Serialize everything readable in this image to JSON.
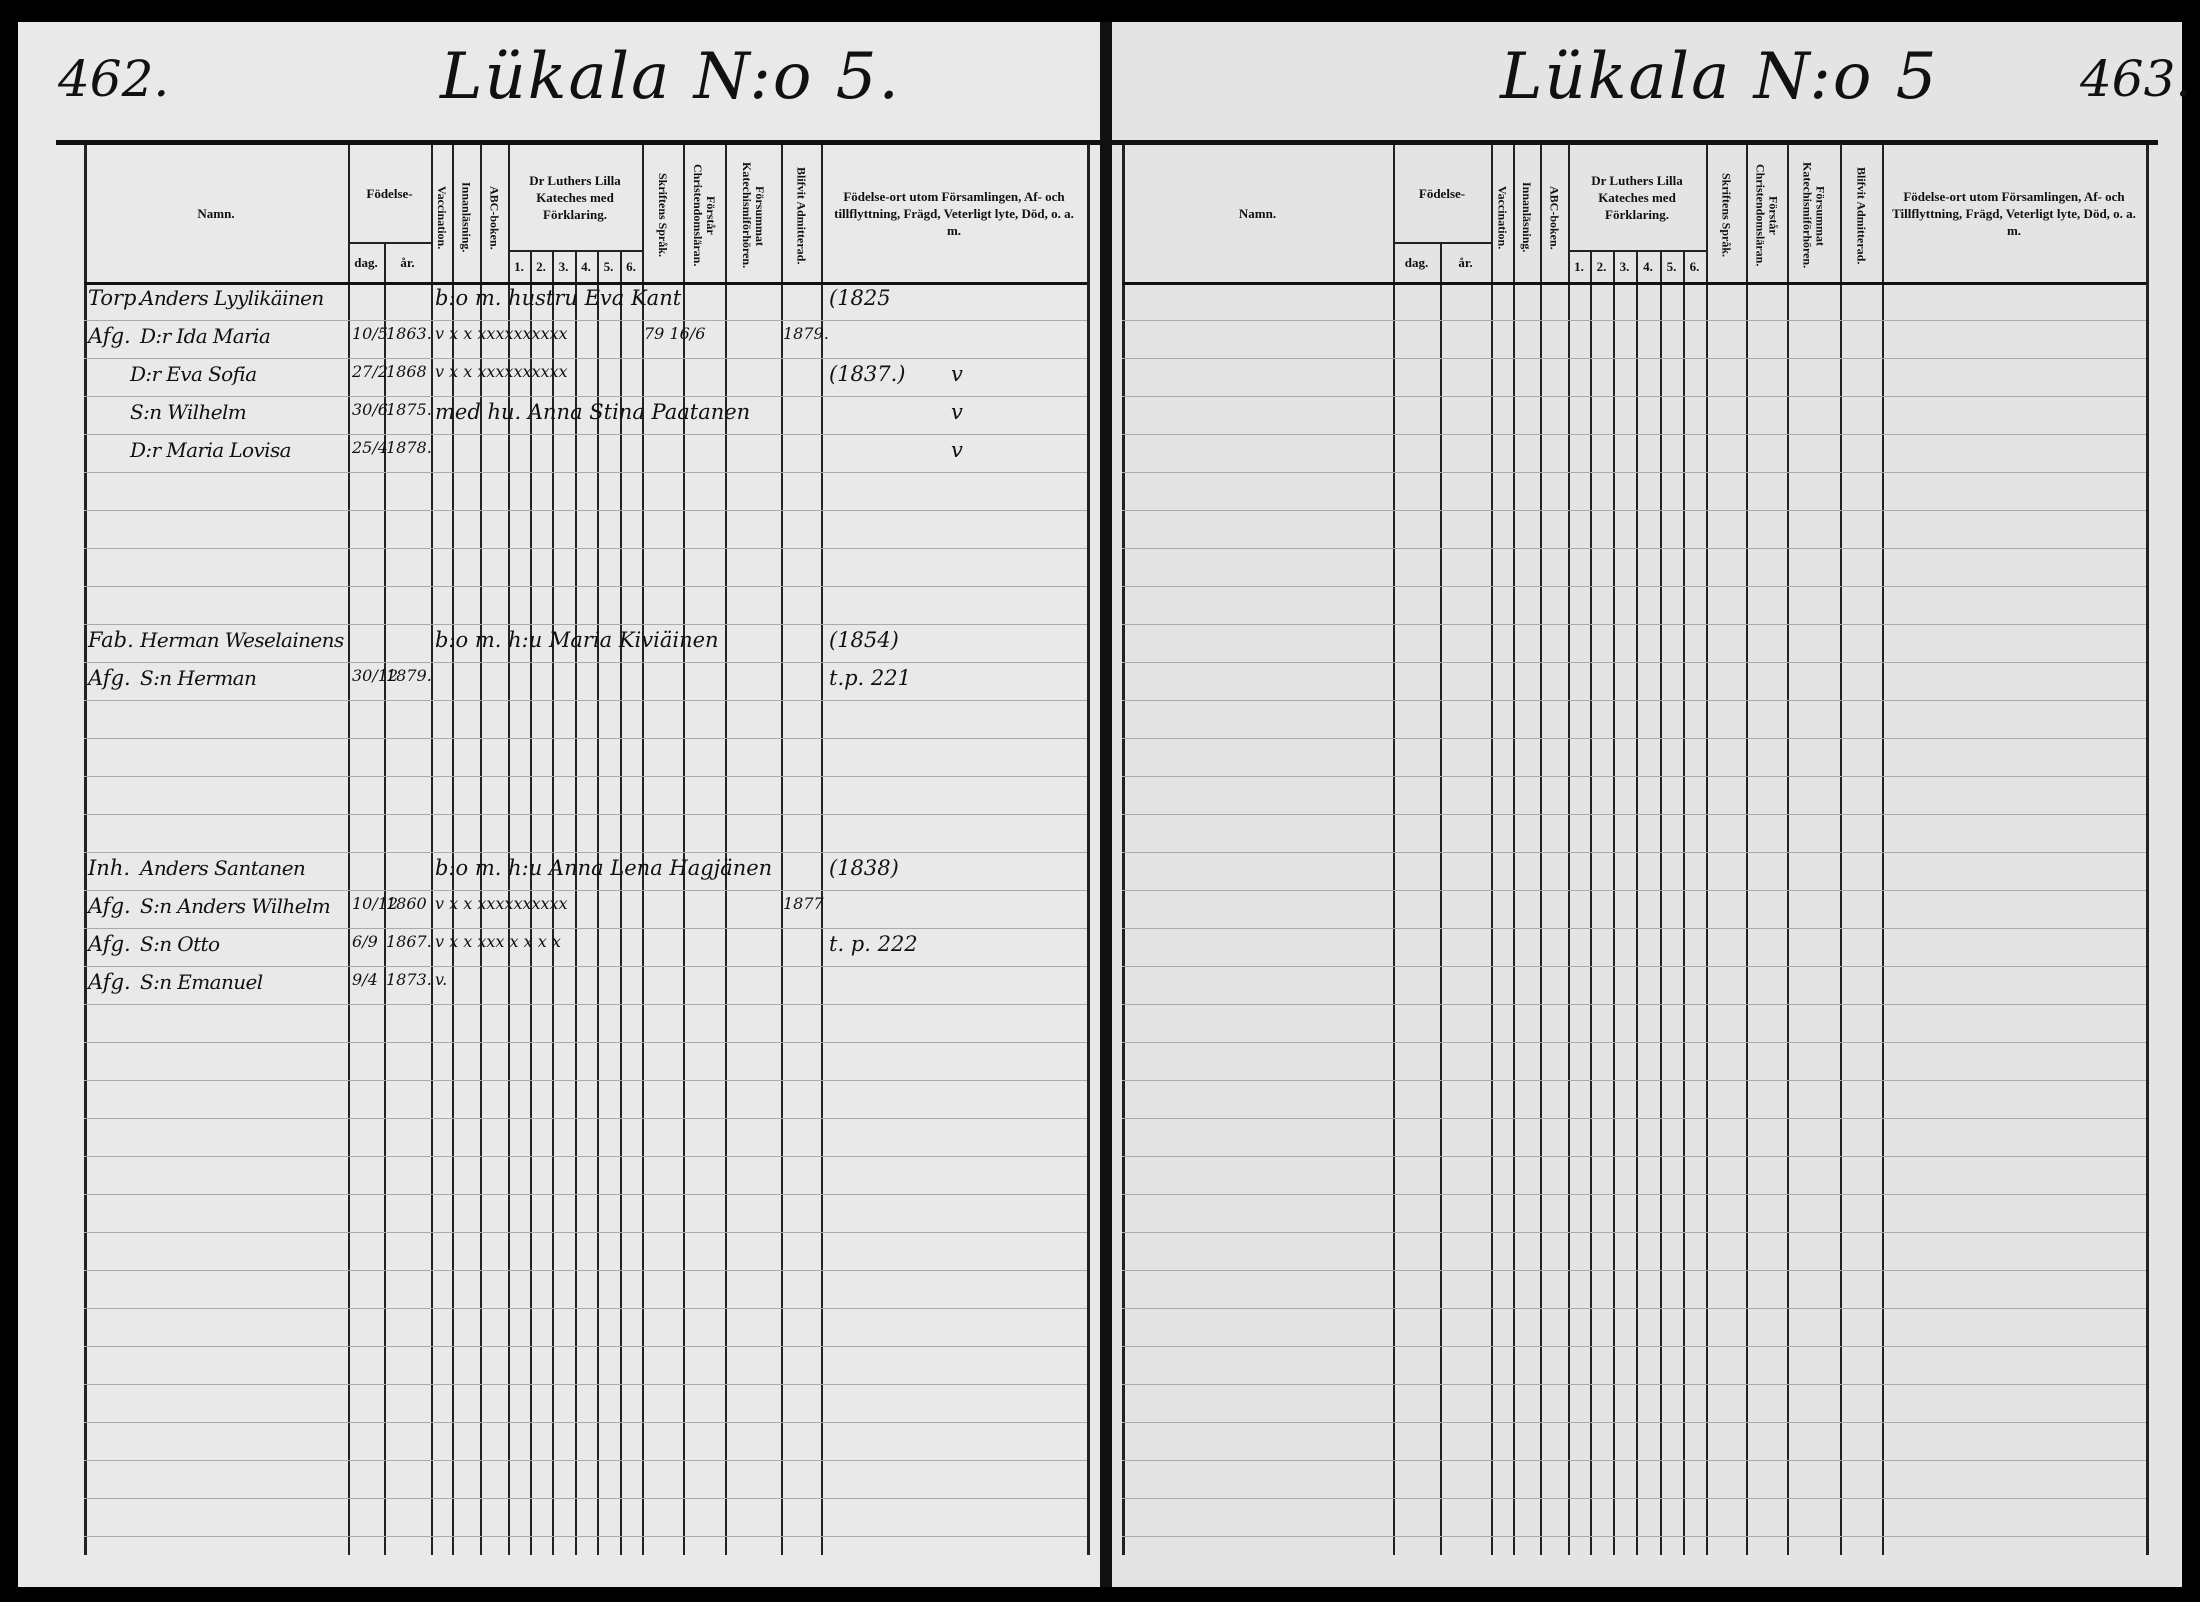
{
  "left_page": {
    "page_number": "462.",
    "heading": "Lükala N:o 5.",
    "rows": [
      {
        "title": "Torp.",
        "name": "Anders Lyylikäinen",
        "extra": "b:o m. hustru Eva Kant",
        "ort": "(1825"
      },
      {
        "title": "Afg.",
        "name": "D:r Ida Maria",
        "dag": "10/5",
        "ar": "1863.",
        "marks": "v x x xxxxxxxxxx",
        "skrift": "79 16/6",
        "blifvit": "1879."
      },
      {
        "name": "D:r Eva Sofia",
        "dag": "27/2",
        "ar": "1868",
        "marks": "v x x xxxxxxxxxx",
        "ort": "(1837.)",
        "note": "v"
      },
      {
        "name": "S:n Wilhelm",
        "dag": "30/6.",
        "ar": "1875.",
        "extra": "med hu. Anna Stina Paatanen",
        "note": "v"
      },
      {
        "name": "D:r Maria Lovisa",
        "dag": "25/4",
        "ar": "1878.",
        "note": "v"
      },
      {},
      {},
      {},
      {},
      {
        "title": "Fab.",
        "name": "Herman Weselainens",
        "extra": "b:o m. h:u Maria Kiviäinen",
        "ort": "(1854)"
      },
      {
        "title": "Afg.",
        "name": "S:n Herman",
        "dag": "30/12",
        "ar": "1879.",
        "ort": "t.p. 221"
      },
      {},
      {},
      {},
      {},
      {
        "title": "Inh.",
        "name": "Anders Santanen",
        "extra": "b:o m. h:u Anna Lena Hagjänen",
        "ort": "(1838)"
      },
      {
        "title": "Afg.",
        "name": "S:n Anders Wilhelm",
        "dag": "10/12",
        "ar": "1860",
        "marks": "v x x xxxxxxxxxx",
        "blifvit": "1877"
      },
      {
        "title": "Afg.",
        "name": "S:n Otto",
        "dag": "6/9",
        "ar": "1867.",
        "marks": "v x x xxx x x x x",
        "ort": "t. p. 222"
      },
      {
        "title": "Afg.",
        "name": "S:n Emanuel",
        "dag": "9/4",
        "ar": "1873.",
        "marks": "v."
      }
    ]
  },
  "right_page": {
    "page_number": "463.",
    "heading": "Lükala N:o 5"
  },
  "headers": {
    "namn": "Namn.",
    "fodelse": "Födelse-",
    "dag": "dag.",
    "ar": "år.",
    "vaccination": "Vaccination.",
    "innanlasning": "Innanläsning.",
    "abc": "ABC-boken.",
    "katekes": "Dr Luthers Lilla Kateches med Förklaring.",
    "k1": "1.",
    "k2": "2.",
    "k3": "3.",
    "k4": "4.",
    "k5": "5.",
    "k6": "6.",
    "skrift": "Skriftens Språk.",
    "forstar": "Förstår Christendomsläran.",
    "forsummat": "Försummat Katechismiförhören.",
    "blifvit": "Blifvit Admitterad.",
    "ort_left": "Födelse-ort utom Församlingen, Af- och tillflyttning, Frägd, Veterligt lyte, Död, o. a. m.",
    "ort_right": "Födelse-ort utom Församlingen, Af- och Tillflyttning, Frägd, Veterligt lyte, Död, o. a. m."
  }
}
